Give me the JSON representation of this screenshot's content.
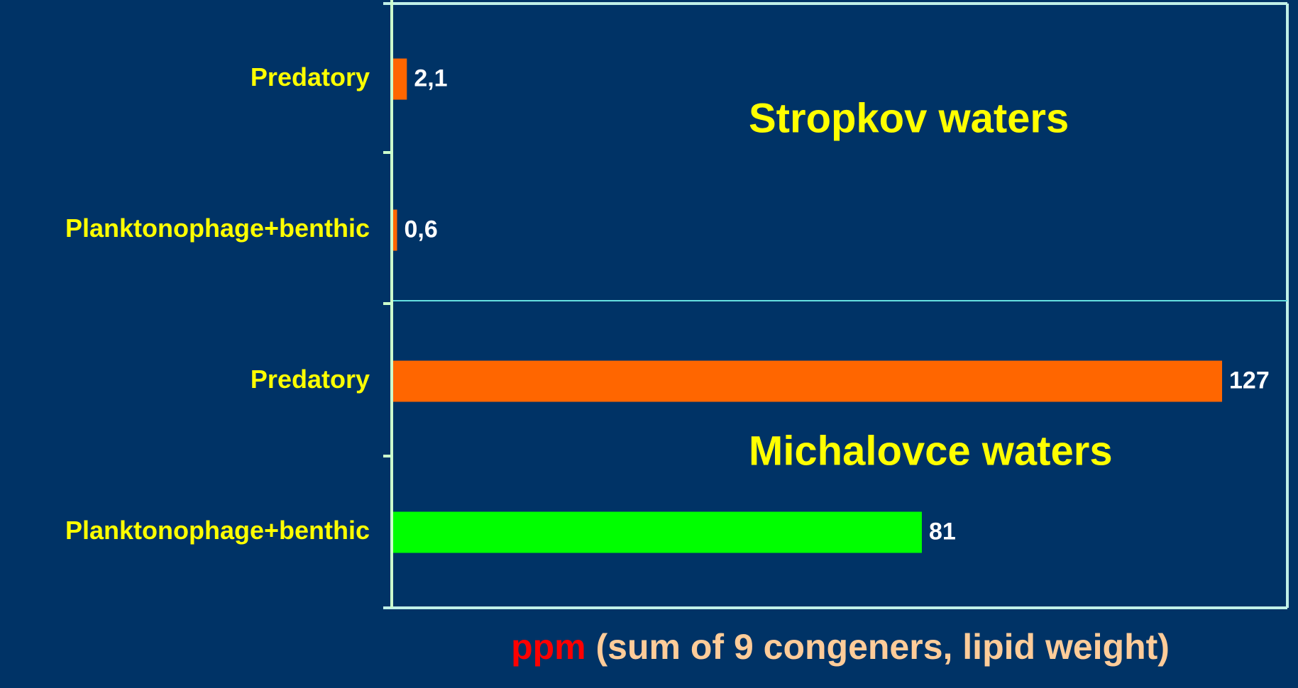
{
  "chart_data": {
    "type": "barh",
    "categories": [
      "Predatory",
      "Planktonophage+benthic",
      "Predatory",
      "Planktonophage+benthic"
    ],
    "values": [
      2.1,
      0.6,
      127,
      81
    ],
    "value_labels": [
      "2,1",
      "0,6",
      "127",
      "81"
    ],
    "colors": [
      "#ff6600",
      "#ff6600",
      "#ff6600",
      "#00ff00"
    ],
    "xlim": [
      0,
      137
    ],
    "annotations": [
      "Stropkov waters",
      "Michalovce waters"
    ],
    "xlabel": [
      "ppm",
      "(sum of 9 congeners, lipid weight)"
    ],
    "xlabel_colors": [
      "#ff0000",
      "#ffcc99"
    ]
  }
}
